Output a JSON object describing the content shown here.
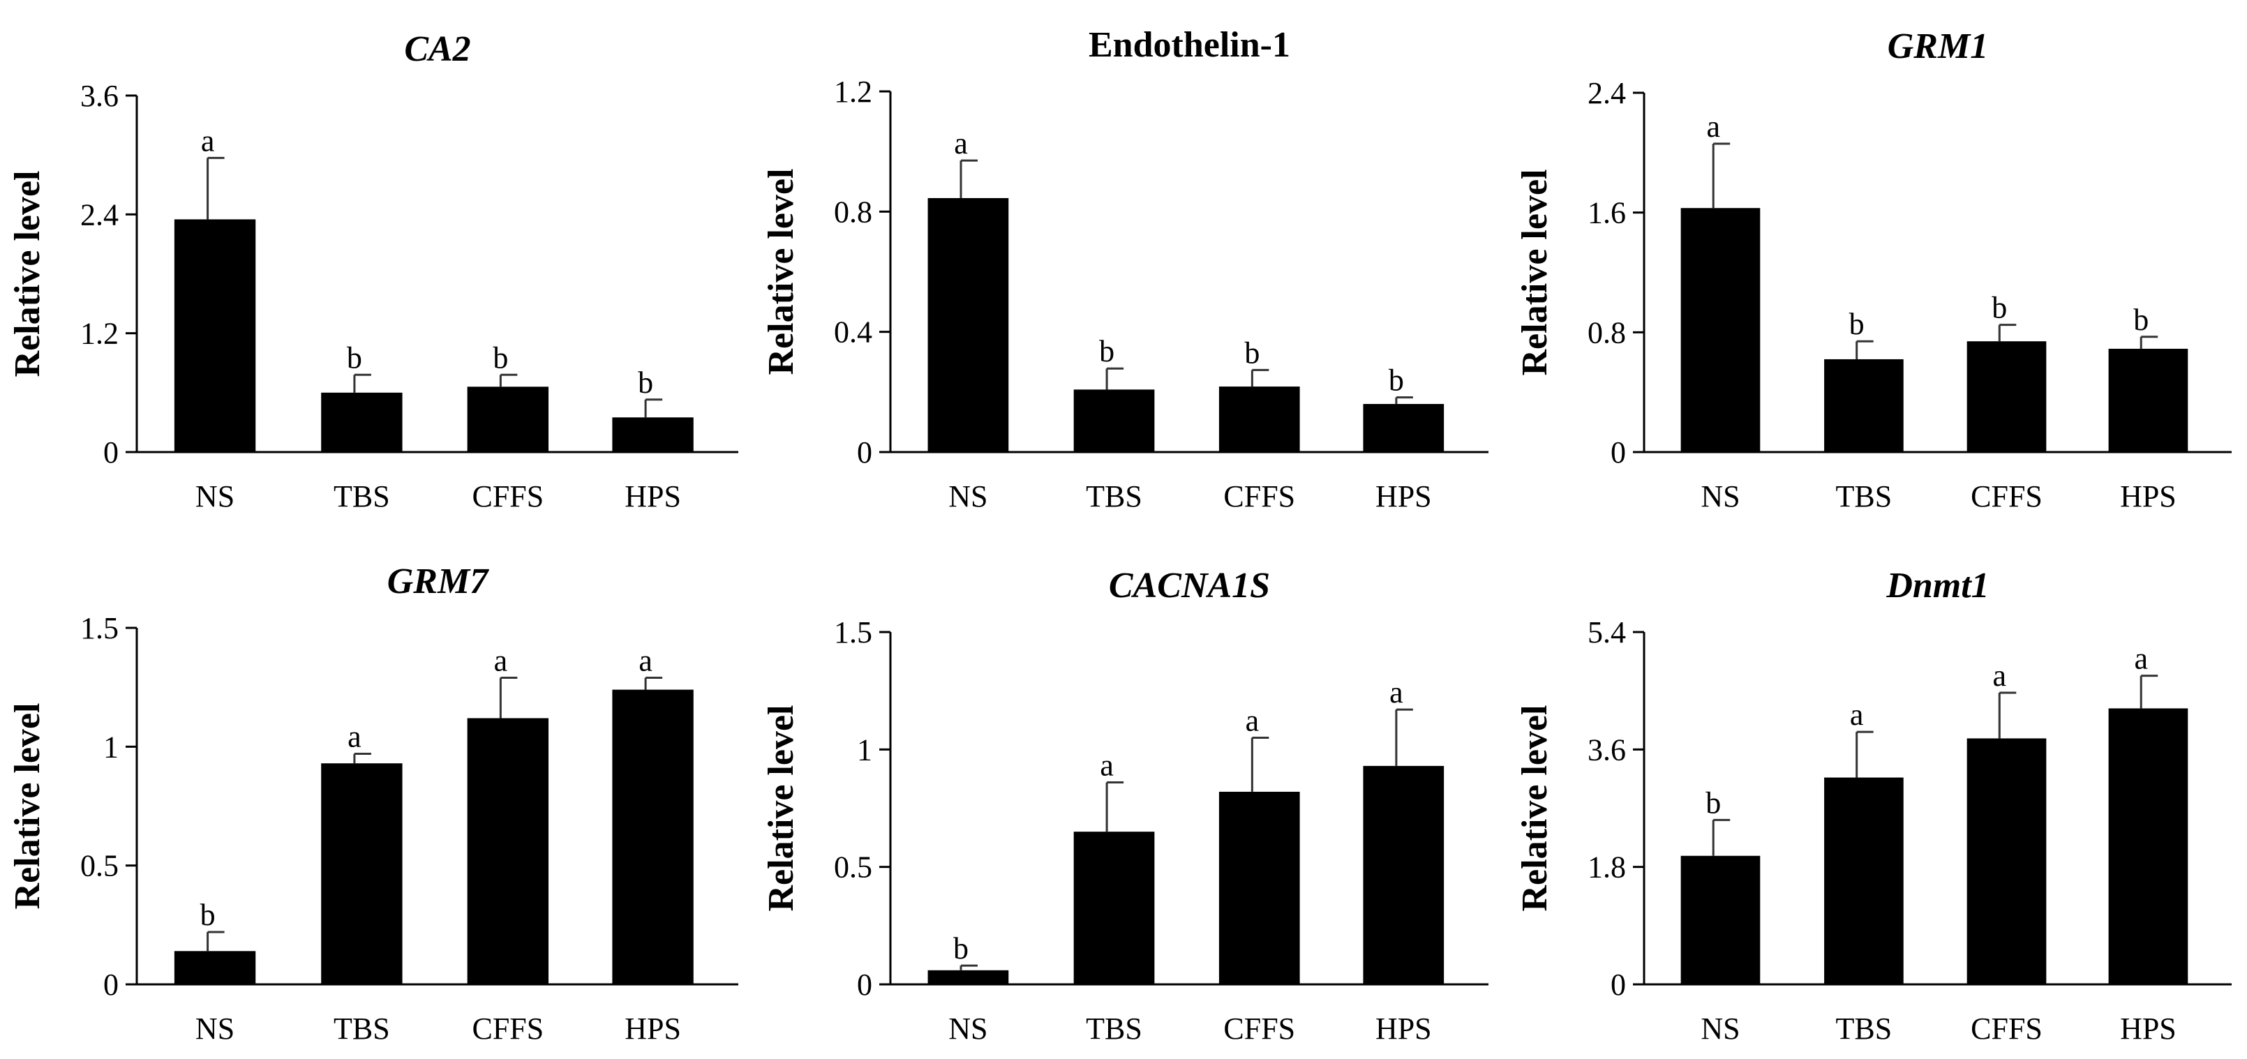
{
  "chart_data": [
    {
      "type": "bar",
      "title": "CA2",
      "title_italic": true,
      "ylabel": "Relative level",
      "categories": [
        "NS",
        "TBS",
        "CFFS",
        "HPS"
      ],
      "values": [
        2.35,
        0.6,
        0.66,
        0.35
      ],
      "errors": [
        0.62,
        0.18,
        0.12,
        0.18
      ],
      "significance": [
        "a",
        "b",
        "b",
        "b"
      ],
      "ylim": [
        0,
        3.6
      ],
      "yticks": [
        0,
        1.2,
        2.4,
        3.6
      ],
      "ytick_labels": [
        "0",
        "1.2",
        "2.4",
        "3.6"
      ],
      "bar_color": "#000000"
    },
    {
      "type": "bar",
      "title": "Endothelin-1",
      "title_italic": false,
      "ylabel": "Relative level",
      "categories": [
        "NS",
        "TBS",
        "CFFS",
        "HPS"
      ],
      "values": [
        0.845,
        0.208,
        0.218,
        0.16
      ],
      "errors": [
        0.125,
        0.07,
        0.055,
        0.022
      ],
      "significance": [
        "a",
        "b",
        "b",
        "b"
      ],
      "ylim": [
        0,
        1.2
      ],
      "yticks": [
        0,
        0.4,
        0.8,
        1.2
      ],
      "ytick_labels": [
        "0",
        "0.4",
        "0.8",
        "1.2"
      ],
      "bar_color": "#000000"
    },
    {
      "type": "bar",
      "title": "GRM1",
      "title_italic": true,
      "ylabel": "Relative level",
      "categories": [
        "NS",
        "TBS",
        "CFFS",
        "HPS"
      ],
      "values": [
        1.63,
        0.62,
        0.74,
        0.69
      ],
      "errors": [
        0.43,
        0.12,
        0.11,
        0.08
      ],
      "significance": [
        "a",
        "b",
        "b",
        "b"
      ],
      "ylim": [
        0,
        2.4
      ],
      "yticks": [
        0,
        0.8,
        1.6,
        2.4
      ],
      "ytick_labels": [
        "0",
        "0.8",
        "1.6",
        "2.4"
      ],
      "bar_color": "#000000"
    },
    {
      "type": "bar",
      "title": "GRM7",
      "title_italic": true,
      "ylabel": "Relative level",
      "categories": [
        "NS",
        "TBS",
        "CFFS",
        "HPS"
      ],
      "values": [
        0.14,
        0.93,
        1.12,
        1.24
      ],
      "errors": [
        0.08,
        0.04,
        0.17,
        0.05
      ],
      "significance": [
        "b",
        "a",
        "a",
        "a"
      ],
      "ylim": [
        0,
        1.5
      ],
      "yticks": [
        0,
        0.5,
        1,
        1.5
      ],
      "ytick_labels": [
        "0",
        "0.5",
        "1",
        "1.5"
      ],
      "bar_color": "#000000"
    },
    {
      "type": "bar",
      "title": "CACNA1S",
      "title_italic": true,
      "ylabel": "Relative level",
      "categories": [
        "NS",
        "TBS",
        "CFFS",
        "HPS"
      ],
      "values": [
        0.06,
        0.65,
        0.82,
        0.93
      ],
      "errors": [
        0.02,
        0.21,
        0.23,
        0.24
      ],
      "significance": [
        "b",
        "a",
        "a",
        "a"
      ],
      "ylim": [
        0,
        1.5
      ],
      "yticks": [
        0,
        0.5,
        1,
        1.5
      ],
      "ytick_labels": [
        "0",
        "0.5",
        "1",
        "1.5"
      ],
      "bar_color": "#000000"
    },
    {
      "type": "bar",
      "title": "Dnmt1",
      "title_italic": true,
      "ylabel": "Relative level",
      "categories": [
        "NS",
        "TBS",
        "CFFS",
        "HPS"
      ],
      "values": [
        1.97,
        3.17,
        3.77,
        4.23
      ],
      "errors": [
        0.55,
        0.7,
        0.7,
        0.5
      ],
      "significance": [
        "b",
        "a",
        "a",
        "a"
      ],
      "ylim": [
        0,
        5.4
      ],
      "yticks": [
        0,
        1.8,
        3.6,
        5.4
      ],
      "ytick_labels": [
        "0",
        "1.8",
        "3.6",
        "5.4"
      ],
      "bar_color": "#000000"
    }
  ]
}
